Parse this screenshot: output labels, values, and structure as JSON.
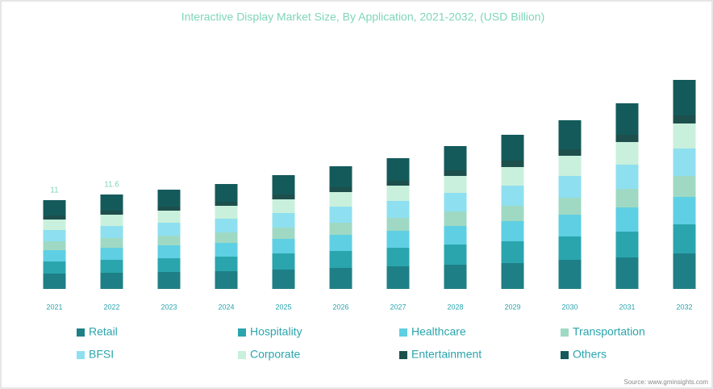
{
  "chart_data": {
    "type": "stacked_bar",
    "title": "Interactive Display Market Size, By Application, 2021-2032, (USD Billion)",
    "categories": [
      "2021",
      "2022",
      "2023",
      "2024",
      "2025",
      "2026",
      "2027",
      "2028",
      "2029",
      "2030",
      "2031",
      "2032"
    ],
    "totals": [
      11,
      11.6
    ],
    "series": [
      {
        "name": "Retail",
        "color": "#1f7f86",
        "values": [
          1.9,
          2.0,
          2.1,
          2.2,
          2.4,
          2.6,
          2.8,
          3.0,
          3.2,
          3.6,
          3.9,
          4.4
        ]
      },
      {
        "name": "Hospitality",
        "color": "#2aa5ad",
        "values": [
          1.5,
          1.6,
          1.7,
          1.8,
          2.0,
          2.1,
          2.3,
          2.5,
          2.7,
          2.9,
          3.2,
          3.6
        ]
      },
      {
        "name": "Healthcare",
        "color": "#5fcfe3",
        "values": [
          1.4,
          1.5,
          1.6,
          1.7,
          1.8,
          2.0,
          2.1,
          2.3,
          2.5,
          2.7,
          3.0,
          3.4
        ]
      },
      {
        "name": "Transportation",
        "color": "#9fd9c4",
        "values": [
          1.1,
          1.2,
          1.2,
          1.3,
          1.4,
          1.5,
          1.6,
          1.8,
          1.9,
          2.1,
          2.3,
          2.6
        ]
      },
      {
        "name": "BFSI",
        "color": "#8ee0f0",
        "values": [
          1.4,
          1.5,
          1.6,
          1.7,
          1.8,
          2.0,
          2.1,
          2.3,
          2.5,
          2.7,
          3.0,
          3.4
        ]
      },
      {
        "name": "Corporate",
        "color": "#c9f0dc",
        "values": [
          1.3,
          1.4,
          1.5,
          1.6,
          1.7,
          1.8,
          1.9,
          2.1,
          2.3,
          2.5,
          2.8,
          3.1
        ]
      },
      {
        "name": "Entertainment",
        "color": "#1d4f4c",
        "values": [
          0.5,
          0.5,
          0.5,
          0.5,
          0.6,
          0.6,
          0.6,
          0.7,
          0.8,
          0.8,
          0.9,
          1.0
        ]
      },
      {
        "name": "Others",
        "color": "#145a5a",
        "values": [
          1.9,
          2.0,
          2.1,
          2.2,
          2.4,
          2.6,
          2.8,
          3.0,
          3.2,
          3.6,
          3.9,
          4.4
        ]
      }
    ],
    "source": "Source: www.gminsights.com"
  }
}
